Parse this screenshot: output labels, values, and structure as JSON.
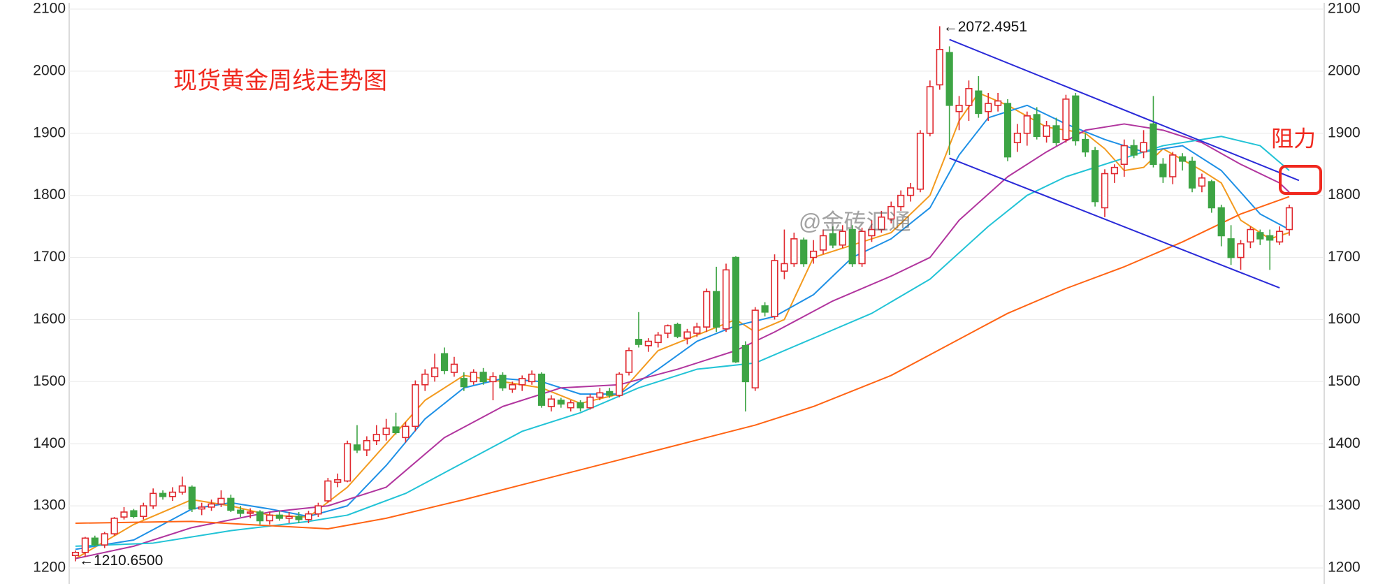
{
  "chart_data": {
    "type": "candlestick",
    "title": "现货黄金周线走势图",
    "watermark": "@金砖汇通",
    "resistance_label": "阻力",
    "ylim": [
      1200,
      2100
    ],
    "yticks": [
      1200,
      1300,
      1400,
      1500,
      1600,
      1700,
      1800,
      1900,
      2000,
      2100
    ],
    "xlim": [
      0,
      125
    ],
    "grid": true,
    "up_color": "#e0282e",
    "down_color": "#3da444",
    "candles": [
      [
        1220,
        1228,
        1210.65,
        1225
      ],
      [
        1225,
        1250,
        1218,
        1248
      ],
      [
        1248,
        1252,
        1235,
        1237
      ],
      [
        1237,
        1258,
        1232,
        1255
      ],
      [
        1255,
        1282,
        1252,
        1280
      ],
      [
        1282,
        1298,
        1278,
        1290
      ],
      [
        1292,
        1295,
        1280,
        1283
      ],
      [
        1283,
        1305,
        1278,
        1300
      ],
      [
        1300,
        1328,
        1295,
        1320
      ],
      [
        1320,
        1325,
        1310,
        1315
      ],
      [
        1315,
        1330,
        1308,
        1322
      ],
      [
        1322,
        1347,
        1318,
        1332
      ],
      [
        1330,
        1333,
        1290,
        1295
      ],
      [
        1295,
        1305,
        1285,
        1298
      ],
      [
        1298,
        1310,
        1292,
        1303
      ],
      [
        1303,
        1325,
        1298,
        1312
      ],
      [
        1312,
        1318,
        1290,
        1293
      ],
      [
        1293,
        1300,
        1282,
        1288
      ],
      [
        1288,
        1296,
        1280,
        1290
      ],
      [
        1290,
        1293,
        1270,
        1276
      ],
      [
        1276,
        1290,
        1270,
        1285
      ],
      [
        1285,
        1292,
        1276,
        1280
      ],
      [
        1280,
        1290,
        1272,
        1283
      ],
      [
        1283,
        1290,
        1272,
        1278
      ],
      [
        1278,
        1292,
        1272,
        1287
      ],
      [
        1287,
        1305,
        1282,
        1300
      ],
      [
        1308,
        1345,
        1305,
        1340
      ],
      [
        1338,
        1352,
        1330,
        1342
      ],
      [
        1340,
        1405,
        1338,
        1400
      ],
      [
        1398,
        1430,
        1385,
        1390
      ],
      [
        1390,
        1412,
        1380,
        1405
      ],
      [
        1405,
        1430,
        1398,
        1415
      ],
      [
        1415,
        1440,
        1405,
        1425
      ],
      [
        1427,
        1450,
        1415,
        1418
      ],
      [
        1410,
        1435,
        1402,
        1428
      ],
      [
        1428,
        1502,
        1420,
        1495
      ],
      [
        1495,
        1520,
        1485,
        1512
      ],
      [
        1508,
        1545,
        1500,
        1522
      ],
      [
        1545,
        1555,
        1512,
        1518
      ],
      [
        1515,
        1540,
        1508,
        1528
      ],
      [
        1505,
        1515,
        1485,
        1492
      ],
      [
        1500,
        1520,
        1495,
        1515
      ],
      [
        1515,
        1522,
        1495,
        1500
      ],
      [
        1500,
        1515,
        1470,
        1508
      ],
      [
        1510,
        1515,
        1485,
        1490
      ],
      [
        1488,
        1500,
        1482,
        1495
      ],
      [
        1495,
        1510,
        1485,
        1505
      ],
      [
        1500,
        1518,
        1495,
        1512
      ],
      [
        1512,
        1515,
        1458,
        1462
      ],
      [
        1460,
        1478,
        1452,
        1472
      ],
      [
        1470,
        1474,
        1458,
        1464
      ],
      [
        1458,
        1470,
        1452,
        1466
      ],
      [
        1466,
        1470,
        1452,
        1458
      ],
      [
        1458,
        1480,
        1455,
        1475
      ],
      [
        1475,
        1490,
        1470,
        1482
      ],
      [
        1484,
        1490,
        1474,
        1478
      ],
      [
        1478,
        1515,
        1475,
        1512
      ],
      [
        1515,
        1555,
        1510,
        1550
      ],
      [
        1568,
        1612,
        1555,
        1560
      ],
      [
        1558,
        1570,
        1548,
        1565
      ],
      [
        1563,
        1580,
        1555,
        1575
      ],
      [
        1578,
        1592,
        1570,
        1590
      ],
      [
        1592,
        1595,
        1570,
        1573
      ],
      [
        1570,
        1585,
        1560,
        1580
      ],
      [
        1578,
        1595,
        1572,
        1588
      ],
      [
        1588,
        1650,
        1580,
        1645
      ],
      [
        1645,
        1685,
        1580,
        1588
      ],
      [
        1585,
        1690,
        1580,
        1680
      ],
      [
        1700,
        1702,
        1530,
        1532
      ],
      [
        1558,
        1565,
        1452,
        1500
      ],
      [
        1490,
        1620,
        1485,
        1615
      ],
      [
        1622,
        1628,
        1605,
        1612
      ],
      [
        1605,
        1705,
        1600,
        1695
      ],
      [
        1678,
        1745,
        1665,
        1690
      ],
      [
        1690,
        1740,
        1685,
        1730
      ],
      [
        1728,
        1732,
        1685,
        1690
      ],
      [
        1700,
        1728,
        1690,
        1710
      ],
      [
        1712,
        1745,
        1705,
        1735
      ],
      [
        1738,
        1750,
        1715,
        1720
      ],
      [
        1720,
        1752,
        1715,
        1742
      ],
      [
        1745,
        1752,
        1685,
        1690
      ],
      [
        1690,
        1748,
        1685,
        1742
      ],
      [
        1735,
        1760,
        1725,
        1745
      ],
      [
        1745,
        1775,
        1740,
        1765
      ],
      [
        1762,
        1790,
        1755,
        1782
      ],
      [
        1782,
        1808,
        1775,
        1800
      ],
      [
        1800,
        1820,
        1790,
        1812
      ],
      [
        1810,
        1905,
        1805,
        1900
      ],
      [
        1900,
        1985,
        1895,
        1975
      ],
      [
        1978,
        2072.4951,
        1970,
        2035
      ],
      [
        2030,
        2040,
        1865,
        1945
      ],
      [
        1935,
        1960,
        1905,
        1945
      ],
      [
        1945,
        1985,
        1920,
        1972
      ],
      [
        1968,
        1992,
        1925,
        1932
      ],
      [
        1935,
        1965,
        1920,
        1948
      ],
      [
        1945,
        1965,
        1935,
        1952
      ],
      [
        1948,
        1955,
        1855,
        1862
      ],
      [
        1885,
        1915,
        1870,
        1900
      ],
      [
        1900,
        1935,
        1880,
        1928
      ],
      [
        1930,
        1942,
        1890,
        1895
      ],
      [
        1895,
        1920,
        1885,
        1912
      ],
      [
        1912,
        1925,
        1880,
        1885
      ],
      [
        1890,
        1962,
        1885,
        1955
      ],
      [
        1960,
        1965,
        1880,
        1888
      ],
      [
        1890,
        1900,
        1862,
        1870
      ],
      [
        1872,
        1878,
        1782,
        1790
      ],
      [
        1780,
        1842,
        1765,
        1835
      ],
      [
        1835,
        1850,
        1820,
        1845
      ],
      [
        1850,
        1890,
        1830,
        1880
      ],
      [
        1880,
        1890,
        1860,
        1865
      ],
      [
        1870,
        1905,
        1860,
        1885
      ],
      [
        1915,
        1960,
        1845,
        1850
      ],
      [
        1850,
        1860,
        1820,
        1830
      ],
      [
        1830,
        1870,
        1818,
        1865
      ],
      [
        1862,
        1868,
        1840,
        1855
      ],
      [
        1855,
        1862,
        1805,
        1812
      ],
      [
        1815,
        1835,
        1805,
        1828
      ],
      [
        1822,
        1825,
        1772,
        1780
      ],
      [
        1780,
        1785,
        1718,
        1735
      ],
      [
        1730,
        1752,
        1688,
        1700
      ],
      [
        1700,
        1728,
        1680,
        1722
      ],
      [
        1725,
        1750,
        1715,
        1745
      ],
      [
        1740,
        1745,
        1720,
        1730
      ],
      [
        1735,
        1745,
        1680,
        1728
      ],
      [
        1725,
        1750,
        1720,
        1742
      ],
      [
        1745,
        1785,
        1735,
        1780
      ]
    ],
    "series": [
      {
        "color": "#f39a1e",
        "x": [
          0,
          6,
          12,
          16,
          20,
          24,
          28,
          32,
          36,
          40,
          44,
          48,
          52,
          56,
          60,
          64,
          68,
          70,
          73,
          76,
          80,
          84,
          88,
          91,
          93,
          96,
          100,
          104,
          106,
          108,
          110,
          112,
          116,
          118,
          120,
          123,
          125
        ],
        "values": [
          1215,
          1270,
          1310,
          1300,
          1285,
          1282,
          1330,
          1400,
          1470,
          1510,
          1500,
          1490,
          1465,
          1480,
          1550,
          1575,
          1600,
          1580,
          1600,
          1700,
          1720,
          1740,
          1800,
          1920,
          1965,
          1945,
          1910,
          1900,
          1875,
          1840,
          1845,
          1875,
          1840,
          1820,
          1760,
          1730,
          1740
        ]
      },
      {
        "color": "#1e90e6",
        "x": [
          0,
          6,
          12,
          16,
          20,
          24,
          28,
          32,
          36,
          40,
          44,
          48,
          52,
          56,
          60,
          64,
          68,
          72,
          76,
          80,
          84,
          88,
          91,
          94,
          98,
          102,
          106,
          110,
          114,
          118,
          122,
          125
        ],
        "values": [
          1230,
          1245,
          1295,
          1305,
          1295,
          1283,
          1300,
          1365,
          1440,
          1490,
          1505,
          1500,
          1480,
          1480,
          1520,
          1565,
          1590,
          1605,
          1640,
          1700,
          1730,
          1780,
          1865,
          1925,
          1945,
          1915,
          1890,
          1870,
          1880,
          1840,
          1770,
          1745
        ]
      },
      {
        "color": "#b1359e",
        "x": [
          0,
          6,
          12,
          20,
          26,
          32,
          38,
          44,
          50,
          56,
          62,
          68,
          72,
          78,
          84,
          88,
          91,
          96,
          100,
          104,
          108,
          112,
          116,
          120,
          124,
          125
        ],
        "values": [
          1215,
          1235,
          1265,
          1290,
          1300,
          1330,
          1410,
          1460,
          1490,
          1495,
          1520,
          1550,
          1580,
          1630,
          1670,
          1700,
          1760,
          1830,
          1870,
          1905,
          1915,
          1905,
          1885,
          1850,
          1820,
          1805
        ]
      },
      {
        "color": "#22c3d6",
        "x": [
          0,
          8,
          16,
          24,
          28,
          34,
          40,
          46,
          52,
          58,
          64,
          70,
          76,
          82,
          88,
          94,
          98,
          102,
          108,
          112,
          118,
          122,
          125
        ],
        "values": [
          1235,
          1240,
          1260,
          1275,
          1285,
          1320,
          1370,
          1420,
          1450,
          1490,
          1520,
          1530,
          1570,
          1610,
          1665,
          1750,
          1800,
          1830,
          1860,
          1880,
          1895,
          1880,
          1840
        ]
      },
      {
        "color": "#ff6414",
        "x": [
          0,
          12,
          20,
          26,
          32,
          40,
          50,
          60,
          70,
          76,
          84,
          90,
          96,
          102,
          108,
          114,
          120,
          125
        ],
        "values": [
          1272,
          1275,
          1268,
          1263,
          1280,
          1310,
          1350,
          1390,
          1430,
          1460,
          1510,
          1560,
          1610,
          1650,
          1685,
          1725,
          1770,
          1798
        ]
      }
    ],
    "trendlines": [
      {
        "color": "#2a2ad8",
        "x": [
          90,
          126
        ],
        "values": [
          2051,
          1824
        ]
      },
      {
        "color": "#2a2ad8",
        "x": [
          90,
          124
        ],
        "values": [
          1860,
          1651
        ]
      }
    ],
    "annotations": [
      {
        "label": "←2072.4951",
        "x": 89,
        "value": 2072.4951
      },
      {
        "label": "←1210.6500",
        "x": 0,
        "value": 1210.65
      }
    ]
  }
}
